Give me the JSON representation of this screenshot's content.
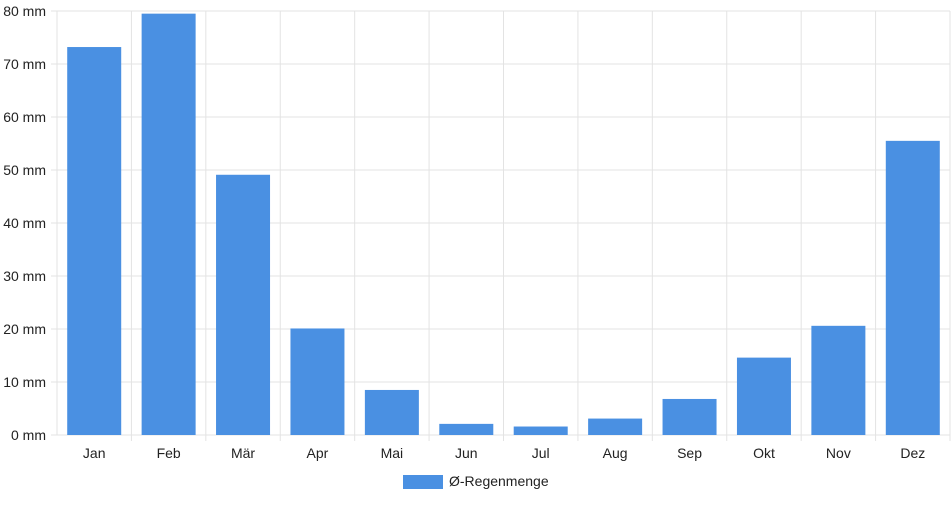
{
  "chart_data": {
    "type": "bar",
    "categories": [
      "Jan",
      "Feb",
      "Mär",
      "Apr",
      "Mai",
      "Jun",
      "Jul",
      "Aug",
      "Sep",
      "Okt",
      "Nov",
      "Dez"
    ],
    "series": [
      {
        "name": "Ø-Regenmenge",
        "values": [
          73.2,
          79.5,
          49.1,
          20.1,
          8.5,
          2.1,
          1.6,
          3.1,
          6.8,
          14.6,
          20.6,
          55.5
        ],
        "color": "#4a90e2"
      }
    ],
    "y_unit": "mm",
    "ylim": [
      0,
      80
    ],
    "y_ticks": [
      0,
      10,
      20,
      30,
      40,
      50,
      60,
      70,
      80
    ],
    "grid": true,
    "legend_position": "bottom-center"
  }
}
